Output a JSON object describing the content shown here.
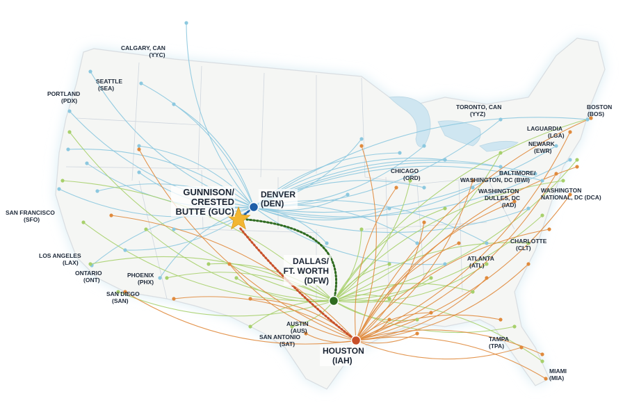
{
  "colors": {
    "background": "#ffffff",
    "land": "#f5f6f4",
    "land_edge": "#d9dde1",
    "water_glow": "#d8ecf4",
    "route_denver": "#8cc8df",
    "route_dallas": "#a7d06b",
    "route_houston": "#e08a3c",
    "hub_denver": "#1f5fa8",
    "hub_dallas": "#2e6b1f",
    "hub_houston": "#c8502a",
    "destination_star": "#f2b632",
    "label_text": "#1f2a3a"
  },
  "hubs": {
    "denver": {
      "line1": "DENVER",
      "line2": "(DEN)"
    },
    "dallas": {
      "line1": "DALLAS/",
      "line2": "FT. WORTH",
      "line3": "(DFW)"
    },
    "houston": {
      "line1": "HOUSTON",
      "line2": "(IAH)"
    }
  },
  "destination": {
    "line1": "GUNNISON/",
    "line2": "CRESTED",
    "line3": "BUTTE (GUC)",
    "icon": "star-icon"
  },
  "cities": {
    "calgary": {
      "name": "CALGARY, CAN",
      "code": "(YYC)"
    },
    "seattle": {
      "name": "SEATTLE",
      "code": "(SEA)"
    },
    "portland": {
      "name": "PORTLAND",
      "code": "(PDX)"
    },
    "san_francisco": {
      "name": "SAN FRANCISCO",
      "code": "(SFO)"
    },
    "los_angeles": {
      "name": "LOS ANGELES",
      "code": "(LAX)"
    },
    "ontario": {
      "name": "ONTARIO",
      "code": "(ONT)"
    },
    "phoenix": {
      "name": "PHOENIX",
      "code": "(PHX)"
    },
    "san_diego": {
      "name": "SAN DIEGO",
      "code": "(SAN)"
    },
    "austin": {
      "name": "AUSTIN",
      "code": "(AUS)"
    },
    "san_antonio": {
      "name": "SAN ANTONIO",
      "code": "(SAT)"
    },
    "chicago": {
      "name": "CHICAGO",
      "code": "(ORD)"
    },
    "toronto": {
      "name": "TORONTO, CAN",
      "code": "(YYZ)"
    },
    "boston": {
      "name": "BOSTON",
      "code": "(BOS)"
    },
    "laguardia": {
      "name": "LAGUARDIA",
      "code": "(LGA)"
    },
    "newark": {
      "name": "NEWARK",
      "code": "(EWR)"
    },
    "baltimore": {
      "name": "BALTIMORE/",
      "code": "WASHINGTON, DC (BWI)"
    },
    "washington_dulles": {
      "name": "WASHINGTON",
      "line2": "DULLES, DC",
      "code": "(IAD)"
    },
    "washington_national": {
      "name": "WASHINGTON",
      "code": "NATIONAL, DC (DCA)"
    },
    "charlotte": {
      "name": "CHARLOTTE",
      "code": "(CLT)"
    },
    "atlanta": {
      "name": "ATLANTA",
      "code": "(ATL)"
    },
    "tampa": {
      "name": "TAMPA",
      "code": "(TPA)"
    },
    "miami": {
      "name": "MIAMI",
      "code": "(MIA)"
    }
  }
}
